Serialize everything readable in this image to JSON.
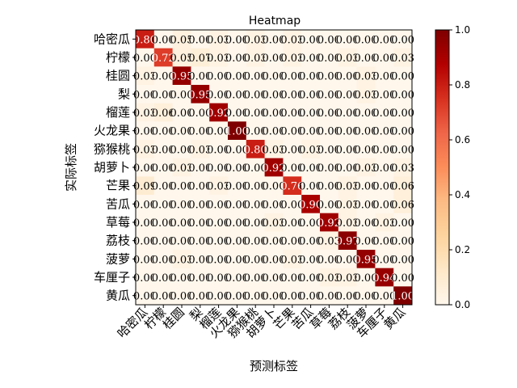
{
  "chart_data": {
    "type": "heatmap",
    "title": "Heatmap",
    "xlabel": "预测标签",
    "ylabel": "实际标签",
    "categories": [
      "哈密瓜",
      "柠檬",
      "桂圆",
      "梨",
      "榴莲",
      "火龙果",
      "猕猴桃",
      "胡萝卜",
      "芒果",
      "苦瓜",
      "草莓",
      "荔枝",
      "菠萝",
      "车厘子",
      "黄瓜"
    ],
    "values": [
      [
        0.8,
        0.0,
        0.05,
        0.0,
        0.03,
        0.0,
        0.03,
        0.0,
        0.03,
        0.0,
        0.0,
        0.0,
        0.0,
        0.0,
        0.0
      ],
      [
        0.0,
        0.72,
        0.05,
        0.07,
        0.03,
        0.0,
        0.03,
        0.0,
        0.03,
        0.0,
        0.0,
        0.03,
        0.0,
        0.0,
        0.03
      ],
      [
        0.03,
        0.0,
        0.95,
        0.0,
        0.0,
        0.0,
        0.0,
        0.0,
        0.0,
        0.0,
        0.0,
        0.0,
        0.03,
        0.0,
        0.0
      ],
      [
        0.0,
        0.0,
        0.0,
        0.95,
        0.0,
        0.0,
        0.0,
        0.0,
        0.0,
        0.0,
        0.0,
        0.0,
        0.03,
        0.0,
        0.0
      ],
      [
        0.03,
        0.06,
        0.0,
        0.0,
        0.92,
        0.0,
        0.0,
        0.0,
        0.0,
        0.0,
        0.0,
        0.0,
        0.0,
        0.0,
        0.0
      ],
      [
        0.0,
        0.0,
        0.0,
        0.0,
        0.0,
        1.0,
        0.0,
        0.0,
        0.0,
        0.0,
        0.0,
        0.0,
        0.0,
        0.0,
        0.0
      ],
      [
        0.03,
        0.0,
        0.0,
        0.03,
        0.0,
        0.0,
        0.8,
        0.03,
        0.0,
        0.03,
        0.0,
        0.0,
        0.0,
        0.0,
        0.0
      ],
      [
        0.0,
        0.0,
        0.03,
        0.0,
        0.0,
        0.0,
        0.0,
        0.92,
        0.0,
        0.0,
        0.0,
        0.0,
        0.03,
        0.0,
        0.03
      ],
      [
        0.09,
        0.0,
        0.0,
        0.0,
        0.03,
        0.0,
        0.0,
        0.0,
        0.76,
        0.0,
        0.0,
        0.03,
        0.0,
        0.0,
        0.06
      ],
      [
        0.0,
        0.0,
        0.0,
        0.0,
        0.0,
        0.0,
        0.0,
        0.0,
        0.0,
        0.9,
        0.0,
        0.03,
        0.0,
        0.0,
        0.06
      ],
      [
        0.0,
        0.0,
        0.0,
        0.0,
        0.0,
        0.0,
        0.0,
        0.03,
        0.0,
        0.0,
        0.92,
        0.03,
        0.0,
        0.03,
        0.0
      ],
      [
        0.0,
        0.0,
        0.0,
        0.0,
        0.0,
        0.0,
        0.0,
        0.0,
        0.0,
        0.0,
        0.03,
        0.97,
        0.0,
        0.0,
        0.0
      ],
      [
        0.0,
        0.0,
        0.03,
        0.0,
        0.0,
        0.0,
        0.0,
        0.0,
        0.03,
        0.0,
        0.0,
        0.0,
        0.95,
        0.0,
        0.0
      ],
      [
        0.0,
        0.0,
        0.0,
        0.0,
        0.0,
        0.0,
        0.0,
        0.0,
        0.0,
        0.0,
        0.03,
        0.03,
        0.0,
        0.94,
        0.0
      ],
      [
        0.0,
        0.0,
        0.0,
        0.0,
        0.0,
        0.0,
        0.0,
        0.0,
        0.0,
        0.0,
        0.0,
        0.0,
        0.0,
        0.0,
        1.0
      ]
    ],
    "value_format": "2-decimal",
    "colormap": "OrRd",
    "vlim": [
      0,
      1
    ],
    "colorbar_ticks": [
      "0.0",
      "0.2",
      "0.4",
      "0.6",
      "0.8",
      "1.0"
    ],
    "grid": false,
    "legend": "colorbar-right"
  }
}
